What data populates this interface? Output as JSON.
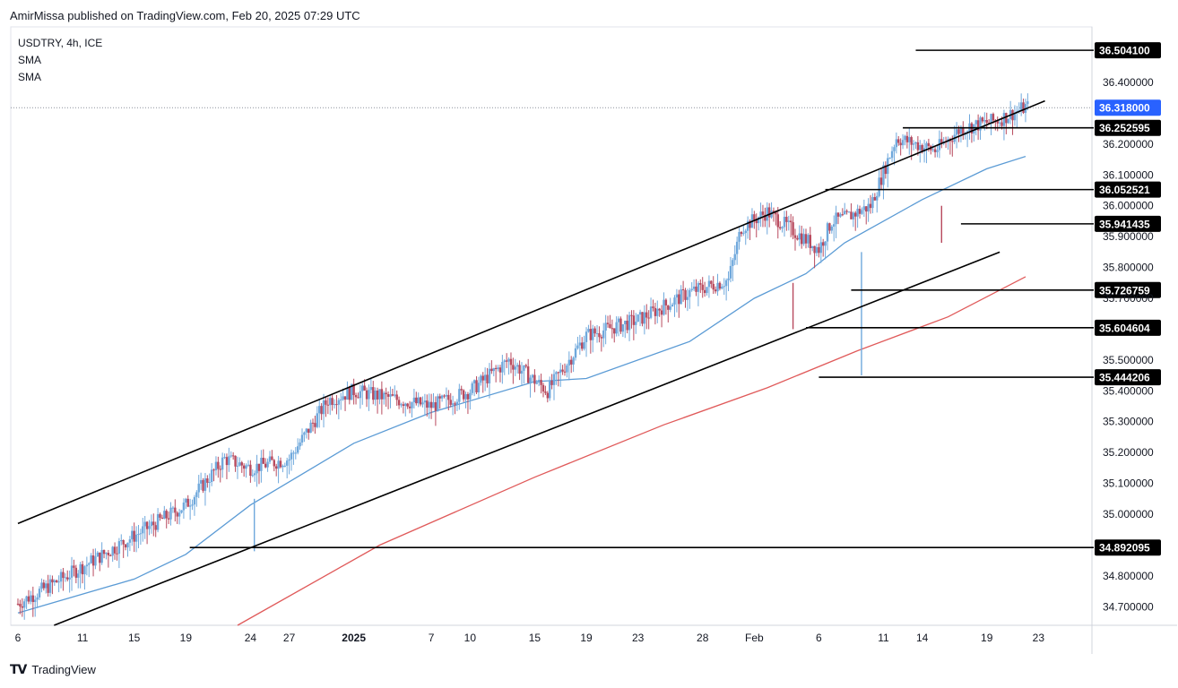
{
  "header": {
    "publisher_text": "AmirMissa published on TradingView.com, Feb 20, 2025 07:29 UTC"
  },
  "legend": {
    "symbol": "USDTRY, 4h, ICE",
    "indicator1": "SMA",
    "indicator2": "SMA"
  },
  "footer": {
    "brand": "TradingView",
    "logo_icon": "tradingview-logo-icon"
  },
  "colors": {
    "up": "#6fa8dc",
    "down": "#b84a5e",
    "sma_fast": "#5b9bd5",
    "sma_slow": "#e05a5a",
    "trendline": "#000000",
    "last_price_bg": "#2962ff"
  },
  "chart_data": {
    "type": "candlestick",
    "symbol": "USDTRY",
    "timeframe": "4h",
    "ylim": [
      34.64,
      36.58
    ],
    "y_ticks": [
      "36.400000",
      "36.200000",
      "36.100000",
      "36.000000",
      "35.900000",
      "35.800000",
      "35.700000",
      "35.500000",
      "35.400000",
      "35.300000",
      "35.200000",
      "35.100000",
      "35.000000",
      "34.800000",
      "34.700000"
    ],
    "x_ticks": [
      {
        "label": "6",
        "day": 0
      },
      {
        "label": "11",
        "day": 5
      },
      {
        "label": "15",
        "day": 9
      },
      {
        "label": "19",
        "day": 13
      },
      {
        "label": "24",
        "day": 18
      },
      {
        "label": "27",
        "day": 21
      },
      {
        "label": "2025",
        "day": 26,
        "bold": true
      },
      {
        "label": "7",
        "day": 32
      },
      {
        "label": "10",
        "day": 35
      },
      {
        "label": "15",
        "day": 40
      },
      {
        "label": "19",
        "day": 44
      },
      {
        "label": "23",
        "day": 48
      },
      {
        "label": "28",
        "day": 53
      },
      {
        "label": "Feb",
        "day": 57
      },
      {
        "label": "6",
        "day": 62
      },
      {
        "label": "11",
        "day": 67
      },
      {
        "label": "14",
        "day": 70
      },
      {
        "label": "19",
        "day": 75
      },
      {
        "label": "23",
        "day": 79
      }
    ],
    "last_price": "36.318000",
    "horizontal_levels": [
      {
        "price": 36.5041,
        "label": "36.504100",
        "from_day": 69.5
      },
      {
        "price": 36.252595,
        "label": "36.252595",
        "from_day": 68.5
      },
      {
        "price": 36.052521,
        "label": "36.052521",
        "from_day": 62.5
      },
      {
        "price": 35.941435,
        "label": "35.941435",
        "from_day": 73.0
      },
      {
        "price": 35.726759,
        "label": "35.726759",
        "from_day": 64.5
      },
      {
        "price": 35.604604,
        "label": "35.604604",
        "from_day": 61.0
      },
      {
        "price": 35.444206,
        "label": "35.444206",
        "from_day": 62.0
      },
      {
        "price": 34.892095,
        "label": "34.892095",
        "from_day": 13.3
      }
    ],
    "trendlines": [
      {
        "name": "upper-channel",
        "points": [
          [
            0,
            34.97
          ],
          [
            79.5,
            36.34
          ]
        ]
      },
      {
        "name": "lower-channel",
        "points": [
          [
            2.8,
            34.64
          ],
          [
            76,
            35.85
          ]
        ]
      }
    ],
    "sma_fast": [
      [
        0,
        34.68
      ],
      [
        9,
        34.79
      ],
      [
        13,
        34.87
      ],
      [
        18,
        35.03
      ],
      [
        26,
        35.23
      ],
      [
        32,
        35.33
      ],
      [
        40,
        35.43
      ],
      [
        44,
        35.44
      ],
      [
        52,
        35.56
      ],
      [
        57,
        35.7
      ],
      [
        61,
        35.78
      ],
      [
        64,
        35.88
      ],
      [
        67,
        35.95
      ],
      [
        70,
        36.02
      ],
      [
        75,
        36.12
      ],
      [
        78,
        36.16
      ]
    ],
    "sma_slow": [
      [
        17,
        34.64
      ],
      [
        28,
        34.9
      ],
      [
        40,
        35.12
      ],
      [
        50,
        35.29
      ],
      [
        58,
        35.41
      ],
      [
        65,
        35.53
      ],
      [
        72,
        35.64
      ],
      [
        78,
        35.77
      ]
    ],
    "candle_seed": [
      [
        0,
        34.71
      ],
      [
        5,
        34.83
      ],
      [
        9,
        34.93
      ],
      [
        13,
        35.03
      ],
      [
        16,
        35.18
      ],
      [
        18,
        35.15
      ],
      [
        21,
        35.18
      ],
      [
        24,
        35.37
      ],
      [
        26,
        35.4
      ],
      [
        32,
        35.35
      ],
      [
        35,
        35.4
      ],
      [
        38,
        35.5
      ],
      [
        41,
        35.4
      ],
      [
        44,
        35.58
      ],
      [
        48,
        35.63
      ],
      [
        52,
        35.72
      ],
      [
        55,
        35.76
      ],
      [
        56,
        35.93
      ],
      [
        58,
        35.98
      ],
      [
        60,
        35.92
      ],
      [
        62,
        35.86
      ],
      [
        63,
        35.95
      ],
      [
        64,
        35.96
      ],
      [
        66,
        36.0
      ],
      [
        68,
        36.22
      ],
      [
        71,
        36.18
      ],
      [
        73,
        36.25
      ],
      [
        76,
        36.28
      ],
      [
        78,
        36.32
      ]
    ]
  }
}
